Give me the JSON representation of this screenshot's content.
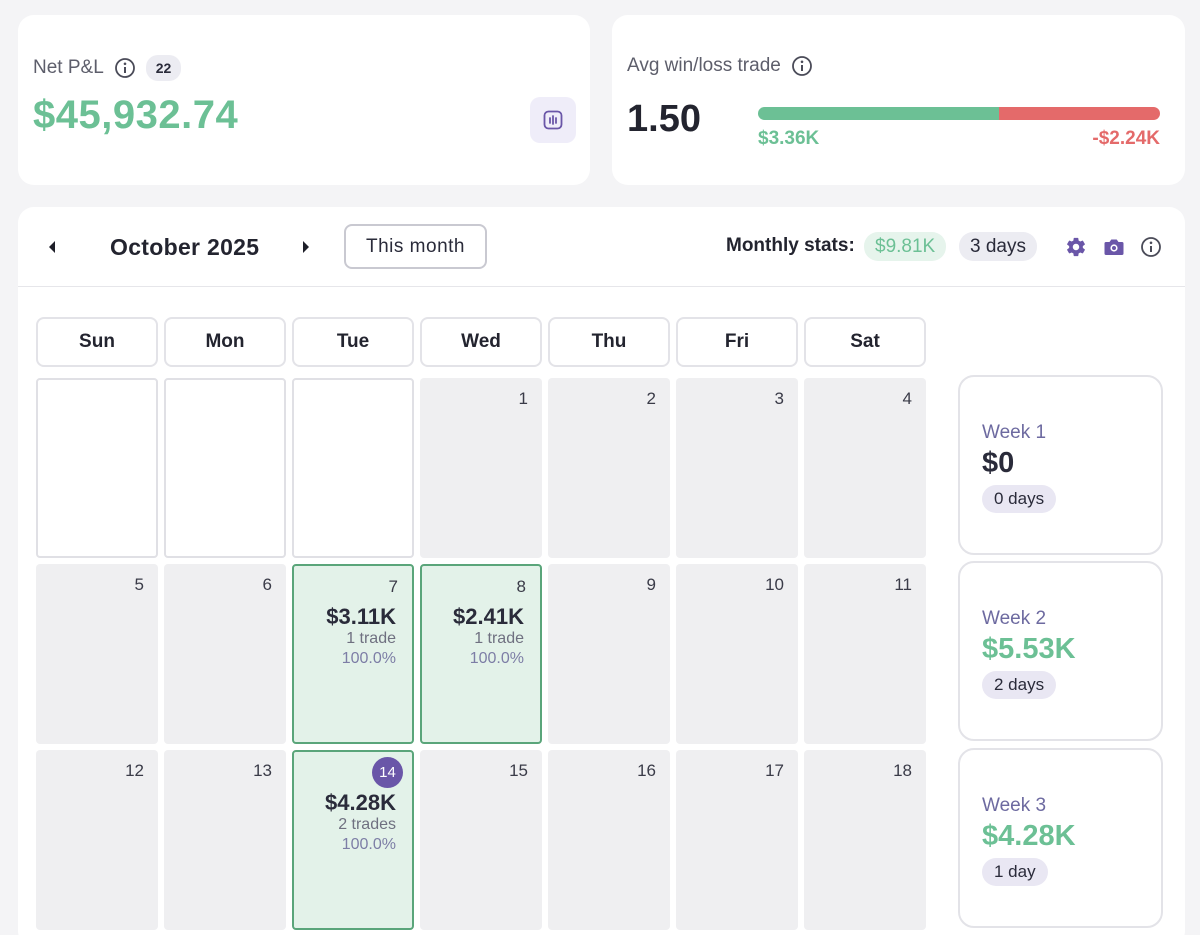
{
  "net_pnl": {
    "label": "Net P&L",
    "count": "22",
    "value": "$45,932.74",
    "chart_icon": "bar-chart-icon"
  },
  "avg_win_loss": {
    "label": "Avg win/loss trade",
    "ratio": "1.50",
    "avg_win": "$3.36K",
    "avg_loss": "-$2.24K",
    "win_fraction": 0.6
  },
  "calendar": {
    "month_title": "October 2025",
    "this_month_label": "This month",
    "monthly_stats_label": "Monthly stats:",
    "monthly_pnl": "$9.81K",
    "monthly_days": "3 days",
    "weekdays": [
      "Sun",
      "Mon",
      "Tue",
      "Wed",
      "Thu",
      "Fri",
      "Sat"
    ],
    "weeks": [
      {
        "days": [
          {
            "num": "",
            "empty": true
          },
          {
            "num": "",
            "empty": true
          },
          {
            "num": "",
            "empty": true
          },
          {
            "num": "1"
          },
          {
            "num": "2"
          },
          {
            "num": "3"
          },
          {
            "num": "4"
          }
        ],
        "summary": {
          "label": "Week 1",
          "value": "$0",
          "days": "0 days",
          "positive": false
        }
      },
      {
        "days": [
          {
            "num": "5"
          },
          {
            "num": "6"
          },
          {
            "num": "7",
            "pnl": "$3.11K",
            "trades": "1 trade",
            "win_rate": "100.0%"
          },
          {
            "num": "8",
            "pnl": "$2.41K",
            "trades": "1 trade",
            "win_rate": "100.0%"
          },
          {
            "num": "9"
          },
          {
            "num": "10"
          },
          {
            "num": "11"
          }
        ],
        "summary": {
          "label": "Week 2",
          "value": "$5.53K",
          "days": "2 days",
          "positive": true
        }
      },
      {
        "days": [
          {
            "num": "12"
          },
          {
            "num": "13"
          },
          {
            "num": "14",
            "today": true,
            "pnl": "$4.28K",
            "trades": "2 trades",
            "win_rate": "100.0%"
          },
          {
            "num": "15"
          },
          {
            "num": "16"
          },
          {
            "num": "17"
          },
          {
            "num": "18"
          }
        ],
        "summary": {
          "label": "Week 3",
          "value": "$4.28K",
          "days": "1 day",
          "positive": true
        }
      }
    ]
  },
  "colors": {
    "positive": "#6cc095",
    "negative": "#e46a6a",
    "accent": "#6a56a8",
    "neutral_text": "#23242f"
  },
  "icons": [
    "info-icon",
    "bar-chart-icon",
    "prev-month-icon",
    "next-month-icon",
    "gear-icon",
    "camera-icon"
  ]
}
